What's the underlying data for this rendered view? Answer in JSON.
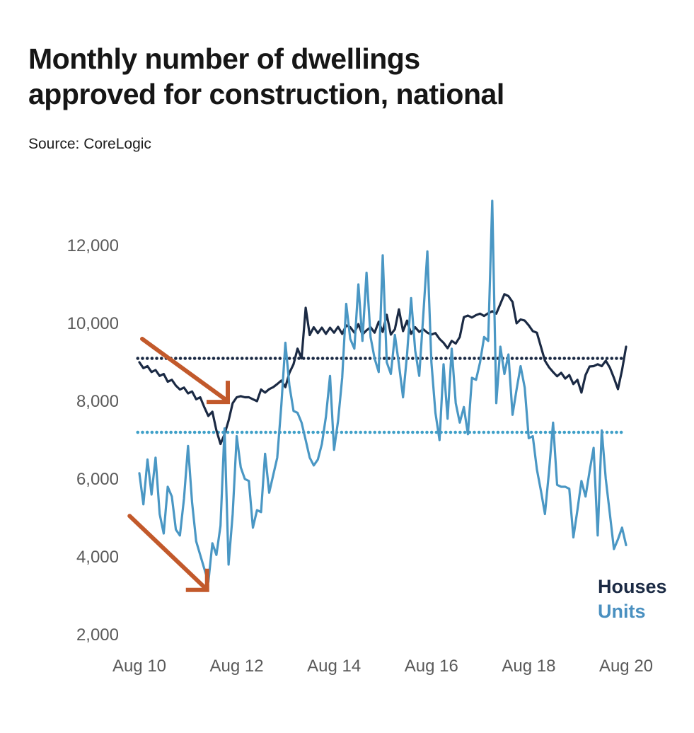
{
  "title": {
    "line1": "Monthly number of dwellings",
    "line2": "approved for construction, national"
  },
  "source": "Source: CoreLogic",
  "legend": {
    "houses": "Houses",
    "units": "Units"
  },
  "colors": {
    "houses_line": "#1b2a44",
    "units_line": "#4a97c4",
    "houses_avg_dotted": "#1b2a44",
    "units_avg_dotted": "#3fa0c8",
    "arrow": "#c2592b",
    "axis_text": "#5a5a5a",
    "title_text": "#161616"
  },
  "chart_data": {
    "type": "line",
    "title": "Monthly number of dwellings approved for construction, national",
    "source": "Source: CoreLogic",
    "x_unit": "month",
    "x_range": [
      "Aug 2010",
      "Aug 2020"
    ],
    "x_tick_months": [
      0,
      24,
      48,
      72,
      96,
      120
    ],
    "x_tick_labels": [
      "Aug 10",
      "Aug 12",
      "Aug 14",
      "Aug 16",
      "Aug 18",
      "Aug 20"
    ],
    "y_tick_values": [
      12000,
      10000,
      8000,
      6000,
      4000,
      2000
    ],
    "y_tick_labels": [
      "12,000",
      "10,000",
      "8,000",
      "6,000",
      "4,000",
      "2,000"
    ],
    "ylim": [
      1800,
      13400
    ],
    "grid": false,
    "legend_position": "bottom-right",
    "series": [
      {
        "name": "Houses",
        "color": "#1b2a44",
        "average_reference_line": 9100,
        "values": [
          9000,
          8850,
          8900,
          8750,
          8800,
          8650,
          8700,
          8500,
          8550,
          8400,
          8300,
          8350,
          8200,
          8250,
          8050,
          8100,
          7850,
          7620,
          7730,
          7250,
          6900,
          7150,
          7500,
          7950,
          8100,
          8130,
          8100,
          8100,
          8050,
          8000,
          8300,
          8220,
          8310,
          8360,
          8440,
          8530,
          8360,
          8730,
          8950,
          9350,
          9100,
          10400,
          9700,
          9900,
          9750,
          9890,
          9730,
          9890,
          9760,
          9910,
          9730,
          9950,
          9900,
          9760,
          9980,
          9710,
          9820,
          9900,
          9760,
          10040,
          9780,
          10220,
          9710,
          9850,
          10360,
          9800,
          10070,
          9730,
          9900,
          9780,
          9850,
          9760,
          9710,
          9750,
          9600,
          9500,
          9360,
          9550,
          9480,
          9650,
          10160,
          10200,
          10150,
          10210,
          10250,
          10190,
          10260,
          10310,
          10250,
          10500,
          10750,
          10700,
          10550,
          10000,
          10100,
          10070,
          9950,
          9800,
          9760,
          9400,
          9040,
          8870,
          8750,
          8640,
          8730,
          8580,
          8670,
          8440,
          8550,
          8220,
          8670,
          8890,
          8900,
          8950,
          8900,
          9040,
          8860,
          8600,
          8310,
          8800,
          9400
        ]
      },
      {
        "name": "Units",
        "color": "#4a97c4",
        "average_reference_line": 7200,
        "values": [
          6150,
          5350,
          6500,
          5600,
          6550,
          5100,
          4600,
          5800,
          5550,
          4700,
          4550,
          5500,
          6850,
          5400,
          4400,
          4050,
          3700,
          3350,
          4350,
          4050,
          4800,
          7300,
          3800,
          5100,
          7100,
          6300,
          6000,
          5950,
          4750,
          5200,
          5150,
          6650,
          5650,
          6100,
          6550,
          7900,
          9500,
          8400,
          7750,
          7700,
          7450,
          7000,
          6550,
          6350,
          6500,
          6900,
          7600,
          8650,
          6750,
          7500,
          8600,
          10500,
          9600,
          9350,
          11000,
          9550,
          11300,
          9650,
          9100,
          8750,
          11750,
          9000,
          8700,
          9700,
          8950,
          8100,
          9200,
          10650,
          9300,
          8650,
          10200,
          11850,
          9000,
          7700,
          7000,
          8950,
          7550,
          9350,
          7950,
          7450,
          7850,
          7150,
          8600,
          8550,
          9000,
          9650,
          9550,
          13150,
          7950,
          9400,
          8700,
          9200,
          7650,
          8300,
          8900,
          8350,
          7050,
          7100,
          6250,
          5700,
          5100,
          6200,
          7450,
          5850,
          5800,
          5800,
          5750,
          4500,
          5200,
          5950,
          5550,
          6200,
          6800,
          4550,
          7250,
          6000,
          5100,
          4200,
          4450,
          4750,
          4300
        ]
      }
    ],
    "reference_lines": [
      {
        "series": "Houses",
        "value": 9100,
        "style": "dotted",
        "color": "#1b2a44"
      },
      {
        "series": "Units",
        "value": 7200,
        "style": "dotted",
        "color": "#3fa0c8"
      }
    ],
    "annotations": [
      {
        "type": "arrow",
        "name": "houses-decline-arrow",
        "color": "#c2592b",
        "from_month": 0.7,
        "from_value": 9600,
        "to_month": 21.8,
        "to_value": 7980
      },
      {
        "type": "arrow",
        "name": "units-decline-arrow",
        "color": "#c2592b",
        "from_month": -2.4,
        "from_value": 5050,
        "to_month": 16.7,
        "to_value": 3150
      }
    ]
  }
}
